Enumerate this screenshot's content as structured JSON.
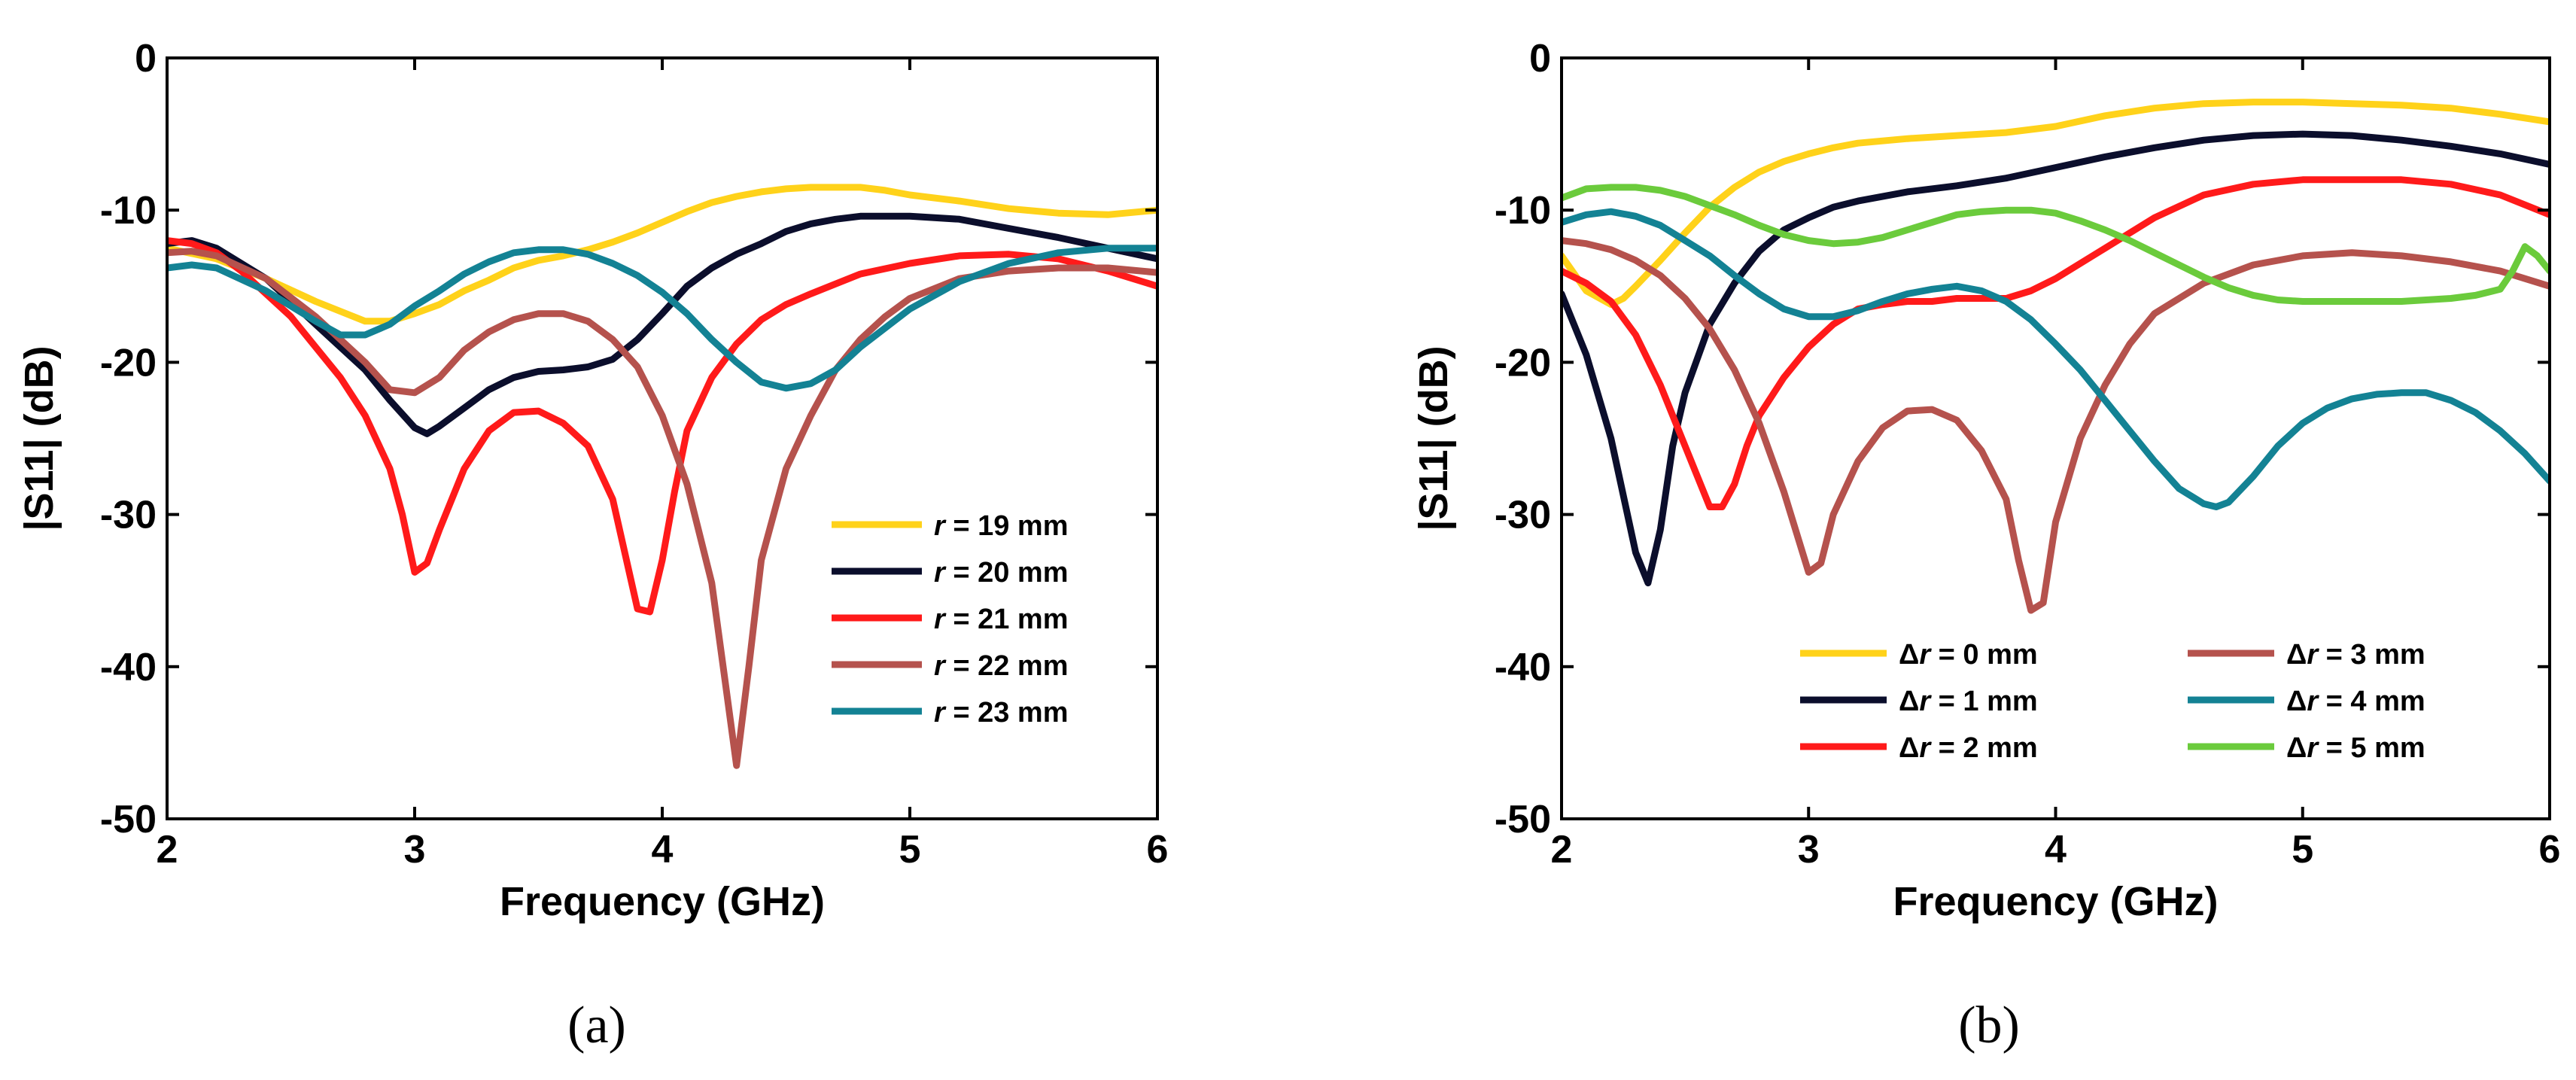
{
  "figure": {
    "captions": [
      "(a)",
      "(b)"
    ]
  },
  "chart_data": [
    {
      "type": "line",
      "panel": "(a)",
      "title": "",
      "xlabel": "Frequency (GHz)",
      "ylabel": "|S11| (dB)",
      "xlim": [
        2,
        6
      ],
      "ylim": [
        -50,
        0
      ],
      "xticks": [
        2,
        3,
        4,
        5,
        6
      ],
      "yticks": [
        0,
        -10,
        -20,
        -30,
        -40,
        -50
      ],
      "xtick_labels": [
        "2",
        "3",
        "4",
        "5",
        "6"
      ],
      "ytick_labels": [
        "0",
        "-10",
        "-20",
        "-30",
        "-40",
        "-50"
      ],
      "grid": false,
      "legend_position": "lower-right",
      "series": [
        {
          "name": "r = 19 mm",
          "symbol": "r",
          "suffix": " = 19 mm",
          "color": "#FFD21A",
          "x": [
            2.0,
            2.2,
            2.4,
            2.6,
            2.8,
            2.9,
            3.0,
            3.1,
            3.2,
            3.3,
            3.4,
            3.5,
            3.6,
            3.7,
            3.8,
            3.9,
            4.0,
            4.1,
            4.2,
            4.3,
            4.4,
            4.5,
            4.6,
            4.7,
            4.8,
            4.9,
            5.0,
            5.2,
            5.4,
            5.6,
            5.8,
            6.0
          ],
          "y": [
            -12.5,
            -13.2,
            -14.5,
            -16.0,
            -17.3,
            -17.3,
            -16.8,
            -16.2,
            -15.3,
            -14.6,
            -13.8,
            -13.3,
            -13.0,
            -12.6,
            -12.1,
            -11.5,
            -10.8,
            -10.1,
            -9.5,
            -9.1,
            -8.8,
            -8.6,
            -8.5,
            -8.5,
            -8.5,
            -8.7,
            -9.0,
            -9.4,
            -9.9,
            -10.2,
            -10.3,
            -10.0
          ]
        },
        {
          "name": "r = 20 mm",
          "symbol": "r",
          "suffix": " = 20 mm",
          "color": "#0B0E2C",
          "x": [
            2.0,
            2.1,
            2.2,
            2.4,
            2.6,
            2.8,
            2.9,
            3.0,
            3.05,
            3.1,
            3.2,
            3.3,
            3.4,
            3.5,
            3.6,
            3.7,
            3.8,
            3.9,
            4.0,
            4.1,
            4.2,
            4.3,
            4.4,
            4.5,
            4.6,
            4.7,
            4.8,
            4.9,
            5.0,
            5.2,
            5.4,
            5.6,
            5.8,
            6.0
          ],
          "y": [
            -12.2,
            -12.0,
            -12.5,
            -14.5,
            -17.5,
            -20.5,
            -22.5,
            -24.3,
            -24.7,
            -24.2,
            -23.0,
            -21.8,
            -21.0,
            -20.6,
            -20.5,
            -20.3,
            -19.8,
            -18.5,
            -16.8,
            -15.0,
            -13.8,
            -12.9,
            -12.2,
            -11.4,
            -10.9,
            -10.6,
            -10.4,
            -10.4,
            -10.4,
            -10.6,
            -11.2,
            -11.8,
            -12.5,
            -13.2
          ]
        },
        {
          "name": "r = 21 mm",
          "symbol": "r",
          "suffix": " = 21 mm",
          "color": "#FF1A1A",
          "x": [
            2.0,
            2.1,
            2.2,
            2.3,
            2.4,
            2.5,
            2.6,
            2.7,
            2.8,
            2.9,
            2.95,
            3.0,
            3.05,
            3.1,
            3.2,
            3.3,
            3.4,
            3.5,
            3.6,
            3.7,
            3.8,
            3.9,
            3.95,
            4.0,
            4.05,
            4.1,
            4.2,
            4.3,
            4.4,
            4.5,
            4.6,
            4.8,
            5.0,
            5.2,
            5.4,
            5.6,
            5.8,
            6.0
          ],
          "y": [
            -12.0,
            -12.2,
            -12.8,
            -14.0,
            -15.5,
            -17.0,
            -19.0,
            -21.0,
            -23.5,
            -27.0,
            -30.0,
            -33.8,
            -33.2,
            -31.0,
            -27.0,
            -24.5,
            -23.3,
            -23.2,
            -24.0,
            -25.5,
            -29.0,
            -36.2,
            -36.4,
            -33.0,
            -28.5,
            -24.5,
            -21.0,
            -18.8,
            -17.2,
            -16.2,
            -15.5,
            -14.2,
            -13.5,
            -13.0,
            -12.9,
            -13.2,
            -14.0,
            -15.0
          ]
        },
        {
          "name": "r = 22 mm",
          "symbol": "r",
          "suffix": " = 22 mm",
          "color": "#B5524D",
          "x": [
            2.0,
            2.1,
            2.2,
            2.4,
            2.6,
            2.8,
            2.9,
            3.0,
            3.1,
            3.2,
            3.3,
            3.4,
            3.5,
            3.6,
            3.7,
            3.8,
            3.9,
            4.0,
            4.1,
            4.2,
            4.25,
            4.3,
            4.35,
            4.4,
            4.5,
            4.6,
            4.7,
            4.8,
            4.9,
            5.0,
            5.2,
            5.4,
            5.6,
            5.8,
            6.0
          ],
          "y": [
            -12.8,
            -12.7,
            -13.0,
            -14.5,
            -17.0,
            -20.0,
            -21.8,
            -22.0,
            -21.0,
            -19.2,
            -18.0,
            -17.2,
            -16.8,
            -16.8,
            -17.3,
            -18.5,
            -20.3,
            -23.5,
            -28.0,
            -34.5,
            -40.5,
            -46.5,
            -40.0,
            -33.0,
            -27.0,
            -23.5,
            -20.5,
            -18.5,
            -17.0,
            -15.8,
            -14.5,
            -14.0,
            -13.8,
            -13.8,
            -14.1
          ]
        },
        {
          "name": "r = 23 mm",
          "symbol": "r",
          "suffix": " = 23 mm",
          "color": "#138294",
          "x": [
            2.0,
            2.1,
            2.2,
            2.4,
            2.6,
            2.7,
            2.8,
            2.9,
            3.0,
            3.1,
            3.2,
            3.3,
            3.4,
            3.5,
            3.6,
            3.7,
            3.8,
            3.9,
            4.0,
            4.1,
            4.2,
            4.3,
            4.4,
            4.5,
            4.6,
            4.7,
            4.8,
            5.0,
            5.2,
            5.4,
            5.6,
            5.8,
            6.0
          ],
          "y": [
            -13.8,
            -13.6,
            -13.8,
            -15.3,
            -17.3,
            -18.2,
            -18.2,
            -17.5,
            -16.3,
            -15.3,
            -14.2,
            -13.4,
            -12.8,
            -12.6,
            -12.6,
            -12.9,
            -13.5,
            -14.3,
            -15.4,
            -16.8,
            -18.5,
            -20.0,
            -21.3,
            -21.7,
            -21.4,
            -20.5,
            -19.0,
            -16.5,
            -14.7,
            -13.5,
            -12.8,
            -12.5,
            -12.5
          ]
        }
      ]
    },
    {
      "type": "line",
      "panel": "(b)",
      "title": "",
      "xlabel": "Frequency (GHz)",
      "ylabel": "|S11| (dB)",
      "xlim": [
        2,
        6
      ],
      "ylim": [
        -50,
        0
      ],
      "xticks": [
        2,
        3,
        4,
        5,
        6
      ],
      "yticks": [
        0,
        -10,
        -20,
        -30,
        -40,
        -50
      ],
      "xtick_labels": [
        "2",
        "3",
        "4",
        "5",
        "6"
      ],
      "ytick_labels": [
        "0",
        "-10",
        "-20",
        "-30",
        "-40",
        "-50"
      ],
      "grid": false,
      "legend_position": "lower-center",
      "legend_columns": 2,
      "series": [
        {
          "name": "Δr = 0 mm",
          "symbol": "Δ",
          "italic": "r",
          "suffix": " = 0 mm",
          "color": "#FFD21A",
          "x": [
            2.0,
            2.1,
            2.2,
            2.25,
            2.3,
            2.4,
            2.5,
            2.6,
            2.7,
            2.8,
            2.9,
            3.0,
            3.1,
            3.2,
            3.4,
            3.6,
            3.8,
            4.0,
            4.2,
            4.4,
            4.6,
            4.8,
            5.0,
            5.2,
            5.4,
            5.6,
            5.8,
            6.0
          ],
          "y": [
            -13.0,
            -15.3,
            -16.2,
            -15.8,
            -15.0,
            -13.3,
            -11.5,
            -9.8,
            -8.5,
            -7.5,
            -6.8,
            -6.3,
            -5.9,
            -5.6,
            -5.3,
            -5.1,
            -4.9,
            -4.5,
            -3.8,
            -3.3,
            -3.0,
            -2.9,
            -2.9,
            -3.0,
            -3.1,
            -3.3,
            -3.7,
            -4.2
          ]
        },
        {
          "name": "Δr = 1 mm",
          "symbol": "Δ",
          "italic": "r",
          "suffix": " = 1 mm",
          "color": "#0B0E2C",
          "x": [
            2.0,
            2.1,
            2.2,
            2.3,
            2.35,
            2.4,
            2.45,
            2.5,
            2.6,
            2.7,
            2.8,
            2.9,
            3.0,
            3.1,
            3.2,
            3.4,
            3.6,
            3.8,
            4.0,
            4.2,
            4.4,
            4.6,
            4.8,
            5.0,
            5.2,
            5.4,
            5.6,
            5.8,
            6.0
          ],
          "y": [
            -15.5,
            -19.5,
            -25.0,
            -32.5,
            -34.5,
            -31.0,
            -25.5,
            -22.0,
            -17.5,
            -14.8,
            -12.7,
            -11.3,
            -10.5,
            -9.8,
            -9.4,
            -8.8,
            -8.4,
            -7.9,
            -7.2,
            -6.5,
            -5.9,
            -5.4,
            -5.1,
            -5.0,
            -5.1,
            -5.4,
            -5.8,
            -6.3,
            -7.0
          ]
        },
        {
          "name": "Δr = 2 mm",
          "symbol": "Δ",
          "italic": "r",
          "suffix": " = 2 mm",
          "color": "#FF1A1A",
          "x": [
            2.0,
            2.1,
            2.2,
            2.3,
            2.4,
            2.5,
            2.6,
            2.65,
            2.7,
            2.75,
            2.8,
            2.9,
            3.0,
            3.1,
            3.2,
            3.3,
            3.4,
            3.5,
            3.6,
            3.7,
            3.8,
            3.9,
            4.0,
            4.2,
            4.4,
            4.6,
            4.8,
            5.0,
            5.2,
            5.4,
            5.6,
            5.8,
            6.0
          ],
          "y": [
            -14.0,
            -14.8,
            -16.0,
            -18.2,
            -21.5,
            -25.5,
            -29.5,
            -29.5,
            -28.0,
            -25.5,
            -23.5,
            -21.0,
            -19.0,
            -17.5,
            -16.5,
            -16.2,
            -16.0,
            -16.0,
            -15.8,
            -15.8,
            -15.8,
            -15.3,
            -14.5,
            -12.5,
            -10.5,
            -9.0,
            -8.3,
            -8.0,
            -8.0,
            -8.0,
            -8.3,
            -9.0,
            -10.3
          ]
        },
        {
          "name": "Δr = 3 mm",
          "symbol": "Δ",
          "italic": "r",
          "suffix": " = 3 mm",
          "color": "#B5524D",
          "x": [
            2.0,
            2.1,
            2.2,
            2.3,
            2.4,
            2.5,
            2.6,
            2.7,
            2.8,
            2.9,
            3.0,
            3.05,
            3.1,
            3.2,
            3.3,
            3.4,
            3.5,
            3.6,
            3.7,
            3.8,
            3.85,
            3.9,
            3.95,
            4.0,
            4.1,
            4.2,
            4.3,
            4.4,
            4.6,
            4.8,
            5.0,
            5.2,
            5.4,
            5.6,
            5.8,
            6.0
          ],
          "y": [
            -12.0,
            -12.2,
            -12.6,
            -13.3,
            -14.3,
            -15.8,
            -17.8,
            -20.5,
            -24.0,
            -28.5,
            -33.8,
            -33.2,
            -30.0,
            -26.5,
            -24.3,
            -23.2,
            -23.1,
            -23.8,
            -25.8,
            -29.0,
            -33.0,
            -36.3,
            -35.8,
            -30.5,
            -25.0,
            -21.5,
            -18.8,
            -16.8,
            -14.8,
            -13.6,
            -13.0,
            -12.8,
            -13.0,
            -13.4,
            -14.0,
            -15.0
          ]
        },
        {
          "name": "Δr = 4 mm",
          "symbol": "Δ",
          "italic": "r",
          "suffix": " = 4 mm",
          "color": "#138294",
          "x": [
            2.0,
            2.1,
            2.2,
            2.3,
            2.4,
            2.5,
            2.6,
            2.7,
            2.8,
            2.9,
            3.0,
            3.1,
            3.2,
            3.3,
            3.4,
            3.5,
            3.6,
            3.7,
            3.8,
            3.9,
            4.0,
            4.1,
            4.2,
            4.3,
            4.4,
            4.5,
            4.6,
            4.65,
            4.7,
            4.8,
            4.9,
            5.0,
            5.1,
            5.2,
            5.3,
            5.4,
            5.5,
            5.6,
            5.7,
            5.8,
            5.9,
            6.0
          ],
          "y": [
            -10.8,
            -10.3,
            -10.1,
            -10.4,
            -11.0,
            -12.0,
            -13.0,
            -14.3,
            -15.5,
            -16.5,
            -17.0,
            -17.0,
            -16.6,
            -16.0,
            -15.5,
            -15.2,
            -15.0,
            -15.3,
            -16.0,
            -17.2,
            -18.8,
            -20.5,
            -22.5,
            -24.5,
            -26.5,
            -28.3,
            -29.3,
            -29.5,
            -29.2,
            -27.5,
            -25.5,
            -24.0,
            -23.0,
            -22.4,
            -22.1,
            -22.0,
            -22.0,
            -22.5,
            -23.3,
            -24.5,
            -26.0,
            -27.8
          ]
        },
        {
          "name": "Δr = 5 mm",
          "symbol": "Δ",
          "italic": "r",
          "suffix": " = 5 mm",
          "color": "#6BCB3C",
          "x": [
            2.0,
            2.1,
            2.2,
            2.3,
            2.4,
            2.5,
            2.6,
            2.7,
            2.8,
            2.9,
            3.0,
            3.1,
            3.2,
            3.3,
            3.4,
            3.5,
            3.6,
            3.7,
            3.8,
            3.9,
            4.0,
            4.1,
            4.2,
            4.3,
            4.4,
            4.5,
            4.6,
            4.7,
            4.8,
            4.9,
            5.0,
            5.1,
            5.2,
            5.3,
            5.4,
            5.5,
            5.6,
            5.7,
            5.8,
            5.85,
            5.9,
            5.95,
            6.0
          ],
          "y": [
            -9.2,
            -8.6,
            -8.5,
            -8.5,
            -8.7,
            -9.1,
            -9.7,
            -10.3,
            -11.0,
            -11.6,
            -12.0,
            -12.2,
            -12.1,
            -11.8,
            -11.3,
            -10.8,
            -10.3,
            -10.1,
            -10.0,
            -10.0,
            -10.2,
            -10.7,
            -11.3,
            -12.0,
            -12.8,
            -13.6,
            -14.4,
            -15.1,
            -15.6,
            -15.9,
            -16.0,
            -16.0,
            -16.0,
            -16.0,
            -16.0,
            -15.9,
            -15.8,
            -15.6,
            -15.2,
            -14.0,
            -12.4,
            -13.0,
            -14.0
          ]
        }
      ]
    }
  ]
}
